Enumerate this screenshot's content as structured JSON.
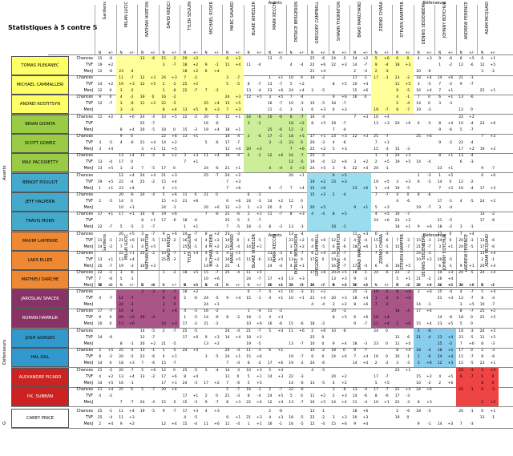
{
  "title": "Statistiques à 5 contre 5",
  "header_groups": {
    "gardiens": "Gardiens",
    "avants": "Avants",
    "defenseurs": "Défenseurs"
  },
  "goalies": [
    "CAREY PRICE"
  ],
  "goalie_cols": [
    "MILAN LUCIC",
    "NATHAN HORTON",
    "DAVID KREJCI"
  ],
  "forward_cols": [
    "TYLER SEGUIN",
    "MICHAEL RYDER",
    "MARC SAVARD",
    "BLAKE WHEELER",
    "MARK RECCHI",
    "PATRICE BERGERON",
    "GREGORY CAMPBELL",
    "SHAWN THORNTON",
    "BRAD MARCHAND"
  ],
  "defense_cols": [
    "ZDENO CHARA",
    "STEVEN KAMPFER",
    "DENNIS SEIDENBERG",
    "JOHNNY BOYCHUK",
    "ANDREW FERENCE",
    "ADAM MCQUAID"
  ],
  "sub_cols": [
    "N",
    "+/-"
  ],
  "row_labels": [
    "Chances",
    "TVF",
    "MenJ"
  ],
  "section_avants": "Avants",
  "section_defenseurs": "Défenseurs",
  "section_g": "G",
  "forwards": [
    {
      "name": "TOMAS PLEKANEC",
      "color": "#ffff66"
    },
    {
      "name": "MICHAEL CAMMALLERI",
      "color": "#ffff66"
    },
    {
      "name": "ANDREI KOSTITSYN",
      "color": "#ffff66"
    },
    {
      "name": "BRIAN GIONTA",
      "color": "#99cc44"
    },
    {
      "name": "SCOTT GOMEZ",
      "color": "#99cc44"
    },
    {
      "name": "MAX PACIORETTY",
      "color": "#99cc44"
    },
    {
      "name": "BENOIT POULIOT",
      "color": "#44aacc"
    },
    {
      "name": "JEFF HALPERN",
      "color": "#44aacc"
    },
    {
      "name": "TRAVIS MOEN",
      "color": "#44aacc"
    },
    {
      "name": "MAXIM LAPIERRE",
      "color": "#ee8833"
    },
    {
      "name": "LARS ELLER",
      "color": "#ee8833"
    },
    {
      "name": "MATHIEU DARCHE",
      "color": "#ee8833"
    }
  ],
  "defensemen": [
    {
      "name": "JAROSLAV SPACEK",
      "color": "#883366"
    },
    {
      "name": "ROMAN HAMRLIK",
      "color": "#883366"
    },
    {
      "name": "JOSH GORGES",
      "color": "#3399cc"
    },
    {
      "name": "HAL GILL",
      "color": "#3399cc"
    },
    {
      "name": "ALEXANDRE PICARD",
      "color": "#cc2222"
    },
    {
      "name": "P.K. SUBBAN",
      "color": "#cc2222"
    }
  ],
  "goalie_row": {
    "name": "CAREY PRICE",
    "color": "#ffffff"
  },
  "block_colors": {
    "yellow": "#ffff99",
    "green": "#ccee99",
    "blue": "#99ddee",
    "orange": "#f5b989",
    "purple": "#aa5588",
    "cyan": "#88ccee",
    "red": "#ee4444",
    "lightyellow": "#ffffcc",
    "lightgreen": "#e5f5cc",
    "lightblue": "#d5eef7",
    "lightorange": "#fbe0cc"
  },
  "sample_values": {
    "goalie": [
      [
        "9",
        "+1"
      ],
      [
        "34",
        "-6"
      ],
      [
        "16",
        "-3"
      ]
    ],
    "plekanec": [
      [
        "9",
        "+3"
      ],
      [
        "34",
        "-4"
      ],
      [
        "16",
        "-5"
      ]
    ]
  }
}
